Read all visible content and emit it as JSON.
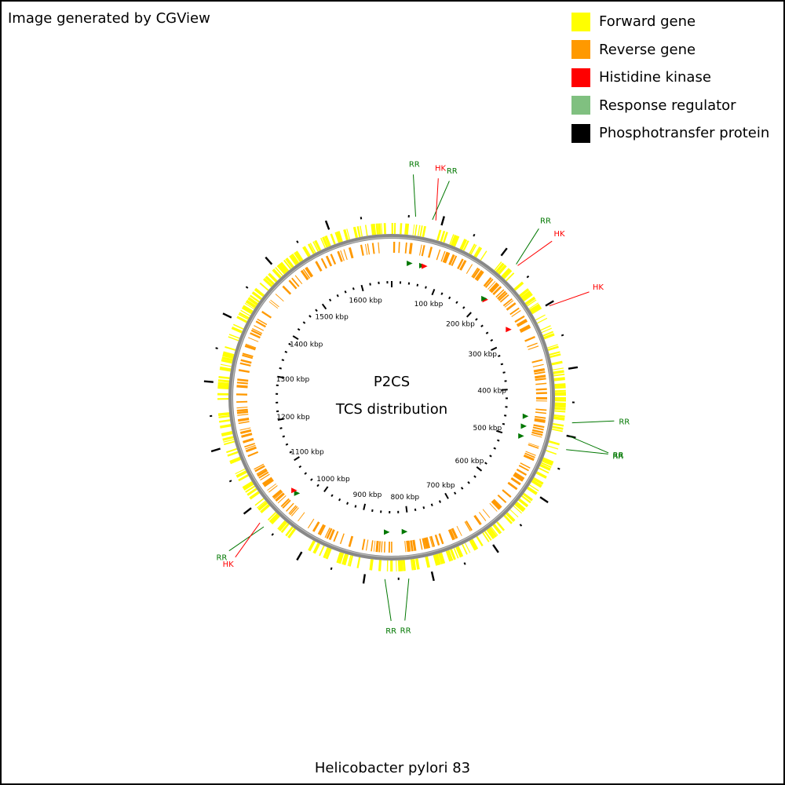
{
  "credit": "Image generated by CGView",
  "footer": "Helicobacter pylori 83",
  "center": {
    "line1": "P2CS",
    "line2": "TCS distribution"
  },
  "colors": {
    "forward": "#ffff00",
    "reverse": "#ff9900",
    "hk": "#ff0000",
    "rr": "#007700",
    "legend_rr": "#80c080",
    "pt": "#000000",
    "backbone": "#888888"
  },
  "legend": [
    {
      "label": "Forward gene",
      "color": "#ffff00"
    },
    {
      "label": "Reverse gene",
      "color": "#ff9900"
    },
    {
      "label": "Histidine kinase",
      "color": "#ff0000"
    },
    {
      "label": "Response regulator",
      "color": "#80c080"
    },
    {
      "label": "Phosphotransfer protein",
      "color": "#000000"
    }
  ],
  "ruler_labels": [
    {
      "kbp": 100,
      "text": "100 kbp"
    },
    {
      "kbp": 200,
      "text": "200 kbp"
    },
    {
      "kbp": 300,
      "text": "300 kbp"
    },
    {
      "kbp": 400,
      "text": "400 kbp"
    },
    {
      "kbp": 500,
      "text": "500 kbp"
    },
    {
      "kbp": 600,
      "text": "600 kbp"
    },
    {
      "kbp": 700,
      "text": "700 kbp"
    },
    {
      "kbp": 800,
      "text": "800 kbp"
    },
    {
      "kbp": 900,
      "text": "900 kbp"
    },
    {
      "kbp": 1000,
      "text": "1000 kbp"
    },
    {
      "kbp": 1100,
      "text": "1100 kbp"
    },
    {
      "kbp": 1200,
      "text": "1200 kbp"
    },
    {
      "kbp": 1300,
      "text": "1300 kbp"
    },
    {
      "kbp": 1400,
      "text": "1400 kbp"
    },
    {
      "kbp": 1500,
      "text": "1500 kbp"
    },
    {
      "kbp": 1600,
      "text": "1600 kbp"
    }
  ],
  "features": [
    {
      "label": "RR",
      "type": "rr",
      "pos_kbp": 35
    },
    {
      "label": "RR",
      "type": "rr",
      "pos_kbp": 60
    },
    {
      "label": "HK",
      "type": "hk",
      "pos_kbp": 65
    },
    {
      "label": "HK",
      "type": "hk",
      "pos_kbp": 203
    },
    {
      "label": "RR",
      "type": "rr",
      "pos_kbp": 200
    },
    {
      "label": "HK",
      "type": "hk",
      "pos_kbp": 278
    },
    {
      "label": "RR",
      "type": "rr",
      "pos_kbp": 455
    },
    {
      "label": "RR",
      "type": "rr",
      "pos_kbp": 475
    },
    {
      "label": "RR",
      "type": "rr",
      "pos_kbp": 495
    },
    {
      "label": "RR",
      "type": "rr",
      "pos_kbp": 810
    },
    {
      "label": "RR",
      "type": "rr",
      "pos_kbp": 845
    },
    {
      "label": "RR",
      "type": "rr",
      "pos_kbp": 1042
    },
    {
      "label": "HK",
      "type": "hk",
      "pos_kbp": 1050
    }
  ]
}
